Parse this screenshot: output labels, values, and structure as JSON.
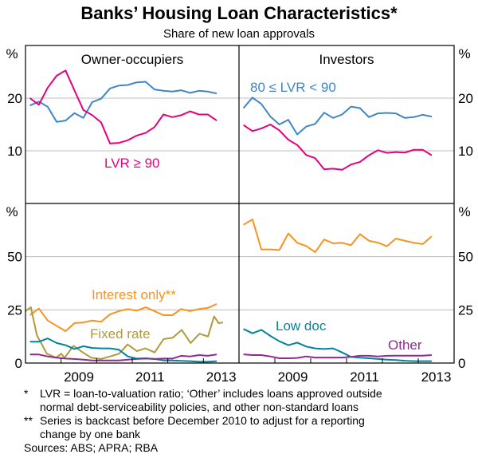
{
  "chart_data": {
    "type": "line",
    "title": "Banks’ Housing Loan Characteristics*",
    "subtitle": "Share of new loan approvals",
    "unit_label": "%",
    "xlim": [
      2008,
      2014
    ],
    "x_tick_labels": [
      "2009",
      "2011",
      "2013"
    ],
    "x_tick_label_years": [
      2009,
      2011,
      2013
    ],
    "x_ticks": [
      2009,
      2010,
      2011,
      2012,
      2013
    ],
    "grid": true,
    "quarterly_start": 2008.125,
    "quarterly_step": 0.25,
    "panels": [
      {
        "id": "owner-top",
        "title": "Owner-occupiers",
        "ylim": [
          0,
          30
        ],
        "yticks": [
          10,
          20
        ],
        "series": [
          {
            "name": "80 ≤ LVR < 90",
            "color": "#3F86C8",
            "values": [
              18.6,
              19.35,
              18.35,
              15.5,
              15.75,
              17.15,
              16.25,
              19.25,
              19.9,
              21.85,
              22.4,
              22.5,
              23,
              23.1,
              21.65,
              21.4,
              21.25,
              21.5,
              21,
              21.4,
              21.25,
              20.9
            ]
          },
          {
            "name": "LVR ≥ 90",
            "color": "#E5007D",
            "values": [
              20,
              18.75,
              22,
              24.25,
              25.25,
              21.5,
              17.75,
              16.75,
              15.4,
              11.4,
              11.5,
              12,
              12.9,
              13.4,
              14.5,
              16.9,
              16.4,
              16.75,
              17.5,
              16.9,
              16.9,
              15.75
            ]
          }
        ]
      },
      {
        "id": "investor-top",
        "title": "Investors",
        "ylim": [
          0,
          30
        ],
        "yticks": [
          10,
          20
        ],
        "series": [
          {
            "name": "80 ≤ LVR < 90",
            "color": "#3F86C8",
            "values": [
              18.1,
              20.1,
              18.9,
              16.5,
              15,
              15.9,
              13.1,
              14.6,
              15.1,
              17.25,
              16.25,
              16.9,
              18.4,
              18.1,
              16.4,
              17.1,
              17.2,
              17.1,
              16.25,
              16.4,
              16.85,
              16.5
            ]
          },
          {
            "name": "LVR ≥ 90",
            "color": "#E5007D",
            "values": [
              14.9,
              13.75,
              14.25,
              15,
              13.9,
              12.1,
              11.1,
              9.2,
              8.6,
              6.5,
              6.6,
              6.4,
              7.4,
              7.9,
              9.15,
              10.1,
              9.6,
              9.75,
              9.65,
              10.2,
              10.2,
              9.15
            ]
          }
        ]
      },
      {
        "id": "owner-bottom",
        "title": "",
        "ylim": [
          0,
          75
        ],
        "yticks": [
          0,
          25,
          50
        ],
        "series": [
          {
            "name": "Interest only**",
            "color": "#F7931E",
            "values": [
              22.5,
              25.6,
              20,
              17.5,
              15,
              18.75,
              19.1,
              20,
              19.4,
              22.9,
              24.4,
              25.4,
              24.6,
              26.25,
              24.4,
              22.5,
              22.5,
              25.4,
              24.4,
              25.4,
              25.9,
              27.75
            ]
          },
          {
            "name": "Fixed rate",
            "color": "#B09A3A",
            "points": [
              [
                2008.0,
                24.4
              ],
              [
                2008.15,
                26.25
              ],
              [
                2008.32,
                13.1
              ],
              [
                2008.6,
                4.4
              ],
              [
                2008.86,
                2.5
              ],
              [
                2009.0,
                4.4
              ],
              [
                2009.1,
                2.5
              ],
              [
                2009.35,
                8.1
              ],
              [
                2009.61,
                5
              ],
              [
                2009.85,
                2.5
              ],
              [
                2010.12,
                1.9
              ],
              [
                2010.38,
                3.1
              ],
              [
                2010.63,
                4.4
              ],
              [
                2010.87,
                8.75
              ],
              [
                2011.13,
                5.6
              ],
              [
                2011.37,
                6.9
              ],
              [
                2011.63,
                5
              ],
              [
                2011.88,
                11.25
              ],
              [
                2012.14,
                11.9
              ],
              [
                2012.39,
                15.6
              ],
              [
                2012.64,
                9.4
              ],
              [
                2012.89,
                13.75
              ],
              [
                2013.13,
                12.5
              ],
              [
                2013.3,
                21.9
              ],
              [
                2013.43,
                18.75
              ],
              [
                2013.55,
                19.1
              ]
            ]
          },
          {
            "name": "Low doc",
            "color": "#00859B",
            "values": [
              10,
              10,
              11.6,
              9.4,
              8.4,
              6.6,
              7.9,
              7.1,
              6.9,
              6.9,
              6.25,
              3.1,
              2.1,
              2.25,
              1.9,
              1.25,
              1.25,
              1,
              0.9,
              0.6,
              0.6,
              0.9
            ]
          },
          {
            "name": "Other",
            "color": "#8E2C90",
            "values": [
              4,
              4,
              3.1,
              2.5,
              2.1,
              1.9,
              1.6,
              1.25,
              1.25,
              1.25,
              1.25,
              1.6,
              1.9,
              2.1,
              1.9,
              2.1,
              2.1,
              3.4,
              3.1,
              3.75,
              3.4,
              4
            ]
          }
        ]
      },
      {
        "id": "investor-bottom",
        "title": "",
        "ylim": [
          0,
          75
        ],
        "yticks": [
          0,
          25,
          50
        ],
        "series": [
          {
            "name": "Interest only**",
            "color": "#F7931E",
            "values": [
              65,
              67.5,
              53.4,
              53.4,
              53.1,
              60.9,
              56.5,
              55,
              52.1,
              58.1,
              56.25,
              56.5,
              55.4,
              60.6,
              57.5,
              56.6,
              54.9,
              58.5,
              57.5,
              56.5,
              55.9,
              59.6
            ]
          },
          {
            "name": "Low doc",
            "color": "#00859B",
            "values": [
              16,
              14,
              15.6,
              12.75,
              10.25,
              8.4,
              9.6,
              7.75,
              6.9,
              6.6,
              6.9,
              5,
              2.9,
              2.5,
              2.25,
              1.9,
              1.6,
              1.4,
              1.1,
              0.9,
              0.9,
              0.9
            ]
          },
          {
            "name": "Other",
            "color": "#8E2C90",
            "values": [
              4.1,
              3.75,
              3.75,
              3.1,
              2.25,
              2.25,
              2.4,
              3.1,
              2.6,
              2.6,
              2.6,
              2.6,
              2.9,
              3.4,
              3.4,
              3.1,
              3.4,
              3.5,
              3.5,
              3.5,
              3.5,
              3.75
            ]
          }
        ]
      }
    ],
    "annotations": {
      "lvr_80_90": "80 ≤ LVR < 90",
      "lvr_90": "LVR ≥ 90",
      "interest_only": "Interest only**",
      "fixed_rate": "Fixed rate",
      "low_doc": "Low doc",
      "other": "Other"
    },
    "footnotes": [
      {
        "mark": "*",
        "lines": [
          "LVR = loan-to-valuation ratio; ‘Other’ includes loans approved outside",
          "normal debt-serviceability policies, and other non-standard loans"
        ]
      },
      {
        "mark": "**",
        "lines": [
          "Series is backcast before December 2010 to adjust for a reporting",
          "change by one bank"
        ]
      }
    ],
    "sources": "Sources: ABS; APRA; RBA"
  }
}
